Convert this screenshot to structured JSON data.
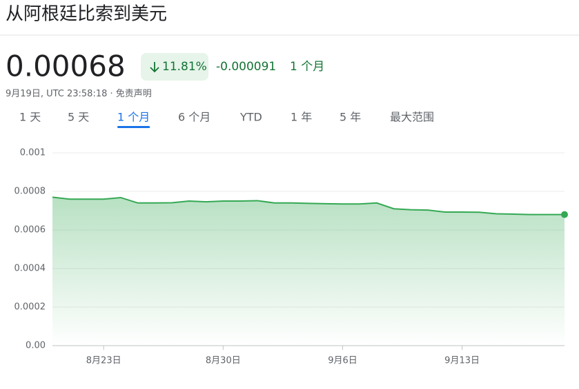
{
  "header": {
    "title": "从阿根廷比索到美元",
    "price": "0.00068",
    "change_percent": "11.81%",
    "change_abs": "-0.000091",
    "period": "1 个月",
    "timestamp": "9月19日, UTC 23:58:18",
    "separator": "·",
    "disclaimer": "免责声明"
  },
  "tabs": {
    "items": [
      "1 天",
      "5 天",
      "1 个月",
      "6 个月",
      "YTD",
      "1 年",
      "5 年",
      "最大范围"
    ],
    "selected": 2
  },
  "chart_data": {
    "type": "line",
    "categories": [
      null,
      null,
      null,
      "8月23日",
      null,
      null,
      null,
      null,
      null,
      null,
      "8月30日",
      null,
      null,
      null,
      null,
      null,
      null,
      "9月6日",
      null,
      null,
      null,
      null,
      null,
      null,
      "9月13日",
      null,
      null,
      null,
      null,
      null,
      null
    ],
    "values": [
      0.00077,
      0.00076,
      0.00076,
      0.00076,
      0.000768,
      0.00074,
      0.00074,
      0.000741,
      0.00075,
      0.000746,
      0.00075,
      0.00075,
      0.000752,
      0.00074,
      0.00074,
      0.000738,
      0.000736,
      0.000735,
      0.000735,
      0.00074,
      0.00071,
      0.000705,
      0.000703,
      0.000693,
      0.000693,
      0.000692,
      0.000684,
      0.000682,
      0.00068,
      0.00068,
      0.00068
    ],
    "color": "#34a853",
    "ylim": [
      0,
      0.001
    ],
    "yticks": [
      {
        "value": 0,
        "label": "0.00"
      },
      0.0002,
      0.0004,
      0.0006,
      0.0008,
      0.001
    ],
    "grid": true
  }
}
